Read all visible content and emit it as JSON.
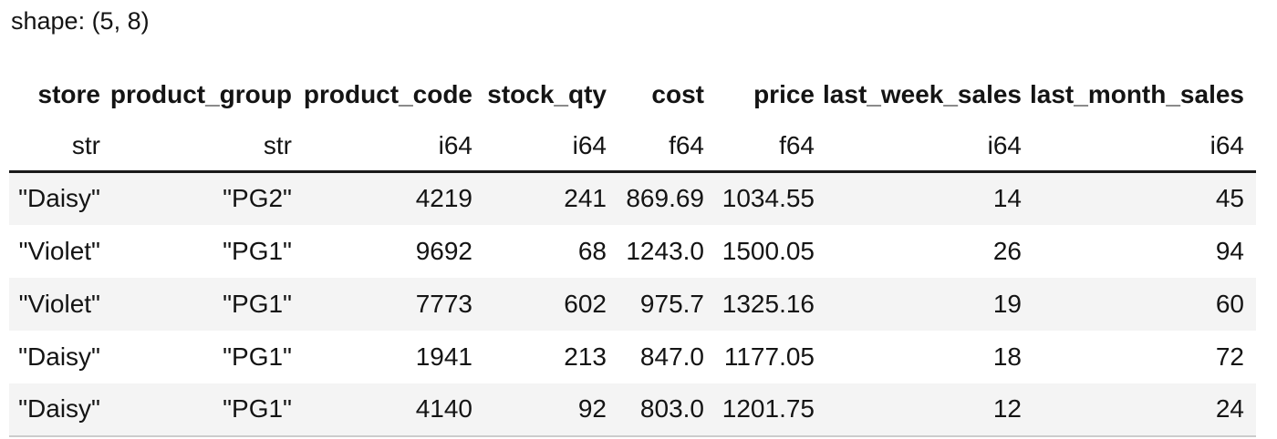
{
  "shape_label": "shape: (5, 8)",
  "table": {
    "columns": [
      {
        "name": "store",
        "dtype": "str"
      },
      {
        "name": "product_group",
        "dtype": "str"
      },
      {
        "name": "product_code",
        "dtype": "i64"
      },
      {
        "name": "stock_qty",
        "dtype": "i64"
      },
      {
        "name": "cost",
        "dtype": "f64"
      },
      {
        "name": "price",
        "dtype": "f64"
      },
      {
        "name": "last_week_sales",
        "dtype": "i64"
      },
      {
        "name": "last_month_sales",
        "dtype": "i64"
      }
    ],
    "rows": [
      [
        "\"Daisy\"",
        "\"PG2\"",
        "4219",
        "241",
        "869.69",
        "1034.55",
        "14",
        "45"
      ],
      [
        "\"Violet\"",
        "\"PG1\"",
        "9692",
        "68",
        "1243.0",
        "1500.05",
        "26",
        "94"
      ],
      [
        "\"Violet\"",
        "\"PG1\"",
        "7773",
        "602",
        "975.7",
        "1325.16",
        "19",
        "60"
      ],
      [
        "\"Daisy\"",
        "\"PG1\"",
        "1941",
        "213",
        "847.0",
        "1177.05",
        "18",
        "72"
      ],
      [
        "\"Daisy\"",
        "\"PG1\"",
        "4140",
        "92",
        "803.0",
        "1201.75",
        "12",
        "24"
      ]
    ]
  },
  "colors": {
    "background": "#ffffff",
    "text": "#141414",
    "stripe": "#f4f4f4",
    "header_divider": "#1a1a1a",
    "bottom_edge": "#cccccc"
  }
}
